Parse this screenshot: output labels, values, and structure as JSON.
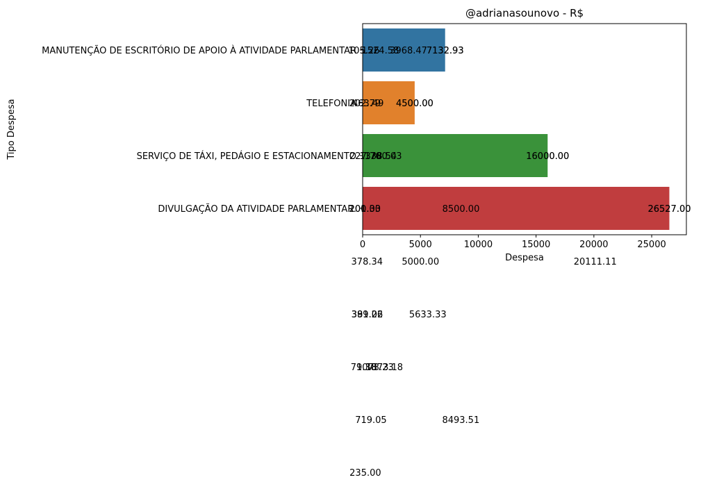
{
  "chart_data": {
    "type": "bar",
    "orientation": "horizontal",
    "title": "@adrianasounovo - R$",
    "xlabel": "Despesa",
    "ylabel": "Tipo Despesa",
    "categories": [
      "MANUTENÇÃO DE ESCRITÓRIO DE APOIO À ATIVIDADE PARLAMENTAR",
      "TELEFONIA",
      "SERVIÇO DE TÁXI, PEDÁGIO E ESTACIONAMENTO",
      "DIVULGAÇÃO DA ATIVIDADE PARLAMENTAR."
    ],
    "values": [
      7132.93,
      4500.0,
      16000.0,
      26527.0
    ],
    "colors": [
      "#3274a1",
      "#e1812c",
      "#3a923a",
      "#c03d3e"
    ],
    "xlim": [
      0,
      28000
    ],
    "xticks": [
      0,
      5000,
      10000,
      15000,
      20000,
      25000
    ],
    "grid": false,
    "legend": "none",
    "annotations": [
      {
        "text": "105.26",
        "x": 105.26,
        "y": 0
      },
      {
        "text": "1524.58",
        "x": 1524.58,
        "y": 0
      },
      {
        "text": "3968.47",
        "x": 3968.47,
        "y": 0
      },
      {
        "text": "7132.93",
        "x": 7132.93,
        "y": 0
      },
      {
        "text": "7132.93",
        "x": 7132.93,
        "y": 0
      },
      {
        "text": "202.79",
        "x": 202.79,
        "y": 1
      },
      {
        "text": "463.49",
        "x": 463.49,
        "y": 1
      },
      {
        "text": "4500.00",
        "x": 4500.0,
        "y": 1
      },
      {
        "text": "4500.00",
        "x": 4500.0,
        "y": 1
      },
      {
        "text": "227.76",
        "x": 227.76,
        "y": 2
      },
      {
        "text": "1338.54",
        "x": 1338.54,
        "y": 2
      },
      {
        "text": "1780.03",
        "x": 1780.03,
        "y": 2
      },
      {
        "text": "16000.00",
        "x": 16000.0,
        "y": 2
      },
      {
        "text": "16000.00",
        "x": 16000.0,
        "y": 2
      },
      {
        "text": "200.00",
        "x": 200.0,
        "y": 3
      },
      {
        "text": "201.33",
        "x": 201.33,
        "y": 3
      },
      {
        "text": "8500.00",
        "x": 8500.0,
        "y": 3
      },
      {
        "text": "26527.00",
        "x": 26527.0,
        "y": 3
      },
      {
        "text": "26527.00",
        "x": 26527.0,
        "y": 3
      },
      {
        "text": "378.34",
        "x": 378.34,
        "y": 4
      },
      {
        "text": "5000.00",
        "x": 5000.0,
        "y": 4
      },
      {
        "text": "20111.11",
        "x": 20111.11,
        "y": 4
      },
      {
        "text": "389.26",
        "x": 389.26,
        "y": 5
      },
      {
        "text": "391.02",
        "x": 391.02,
        "y": 5
      },
      {
        "text": "5633.33",
        "x": 5633.33,
        "y": 5
      },
      {
        "text": "79.38",
        "x": 79.38,
        "y": 6
      },
      {
        "text": "1073.23",
        "x": 1073.23,
        "y": 6
      },
      {
        "text": "1873.18",
        "x": 1873.18,
        "y": 6
      },
      {
        "text": "719.05",
        "x": 719.05,
        "y": 7
      },
      {
        "text": "8493.51",
        "x": 8493.51,
        "y": 7
      },
      {
        "text": "235.00",
        "x": 235.0,
        "y": 8
      }
    ]
  }
}
